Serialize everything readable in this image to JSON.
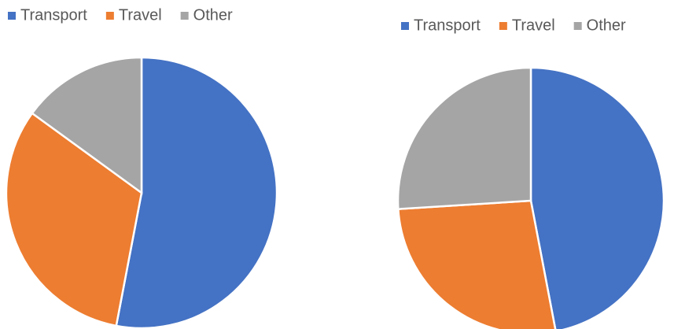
{
  "chart_data": [
    {
      "type": "pie",
      "categories": [
        "Transport",
        "Travel",
        "Other"
      ],
      "values": [
        53,
        32,
        15
      ],
      "colors": [
        "#4472c4",
        "#ed7d31",
        "#a5a5a5"
      ],
      "legend": "top"
    },
    {
      "type": "pie",
      "categories": [
        "Transport",
        "Travel",
        "Other"
      ],
      "values": [
        47,
        27,
        26
      ],
      "colors": [
        "#4472c4",
        "#ed7d31",
        "#a5a5a5"
      ],
      "legend": "top"
    }
  ]
}
